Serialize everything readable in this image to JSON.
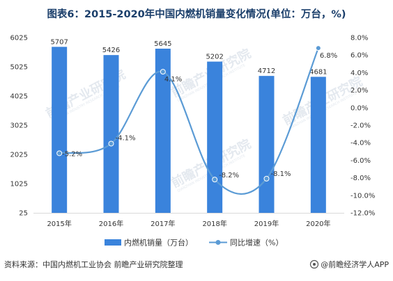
{
  "header": {
    "title": "图表6：2015-2020年中国内燃机销量变化情况(单位：万台，%)"
  },
  "chart_data": {
    "type": "bar",
    "categories": [
      "2015年",
      "2016年",
      "2017年",
      "2018年",
      "2019年",
      "2020年"
    ],
    "series": [
      {
        "name": "内燃机销量（万台）",
        "type": "bar",
        "axis": "left",
        "values": [
          5707,
          5426,
          5645,
          5202,
          4712,
          4681
        ],
        "labels": [
          "5707",
          "5426",
          "5645",
          "5202",
          "4712",
          "4681"
        ],
        "color": "#3a83dc"
      },
      {
        "name": "同比增速（%）",
        "type": "line",
        "axis": "right",
        "values": [
          -5.2,
          -4.1,
          4.1,
          -8.2,
          -8.1,
          6.8
        ],
        "labels": [
          "-5.2%",
          "-4.1%",
          "4.1%",
          "-8.2%",
          "-8.1%",
          "6.8%"
        ],
        "color": "#5b9bd5"
      }
    ],
    "y_left": {
      "range": [
        25,
        6025
      ],
      "ticks": [
        25,
        1025,
        2025,
        3025,
        4025,
        5025,
        6025
      ],
      "tick_labels": [
        "25",
        "1025",
        "2025",
        "3025",
        "4025",
        "5025",
        "6025"
      ]
    },
    "y_right": {
      "range": [
        -12,
        8
      ],
      "ticks": [
        8,
        6,
        4,
        2,
        0,
        -2,
        -4,
        -6,
        -8,
        -10,
        -12
      ],
      "tick_labels": [
        "8.0%",
        "6.0%",
        "4.0%",
        "2.0%",
        "0.0%",
        "-2.0%",
        "-4.0%",
        "-6.0%",
        "-8.0%",
        "-10.0%",
        "-12.0%"
      ]
    },
    "grid": false,
    "legend_position": "bottom"
  },
  "watermark": {
    "text": "前瞻产业研究院",
    "sub_text": "QIANZHAN INDUSTRY RESEARCH INSTITUTE"
  },
  "footer": {
    "source": "资料来源：中国内燃机工业协会 前瞻产业研究院整理",
    "brand": "@前瞻经济学人APP"
  },
  "colors": {
    "bar": "#3a83dc",
    "line": "#5b9bd5",
    "title": "#1b3f6b",
    "axis": "#d9d9d9"
  }
}
